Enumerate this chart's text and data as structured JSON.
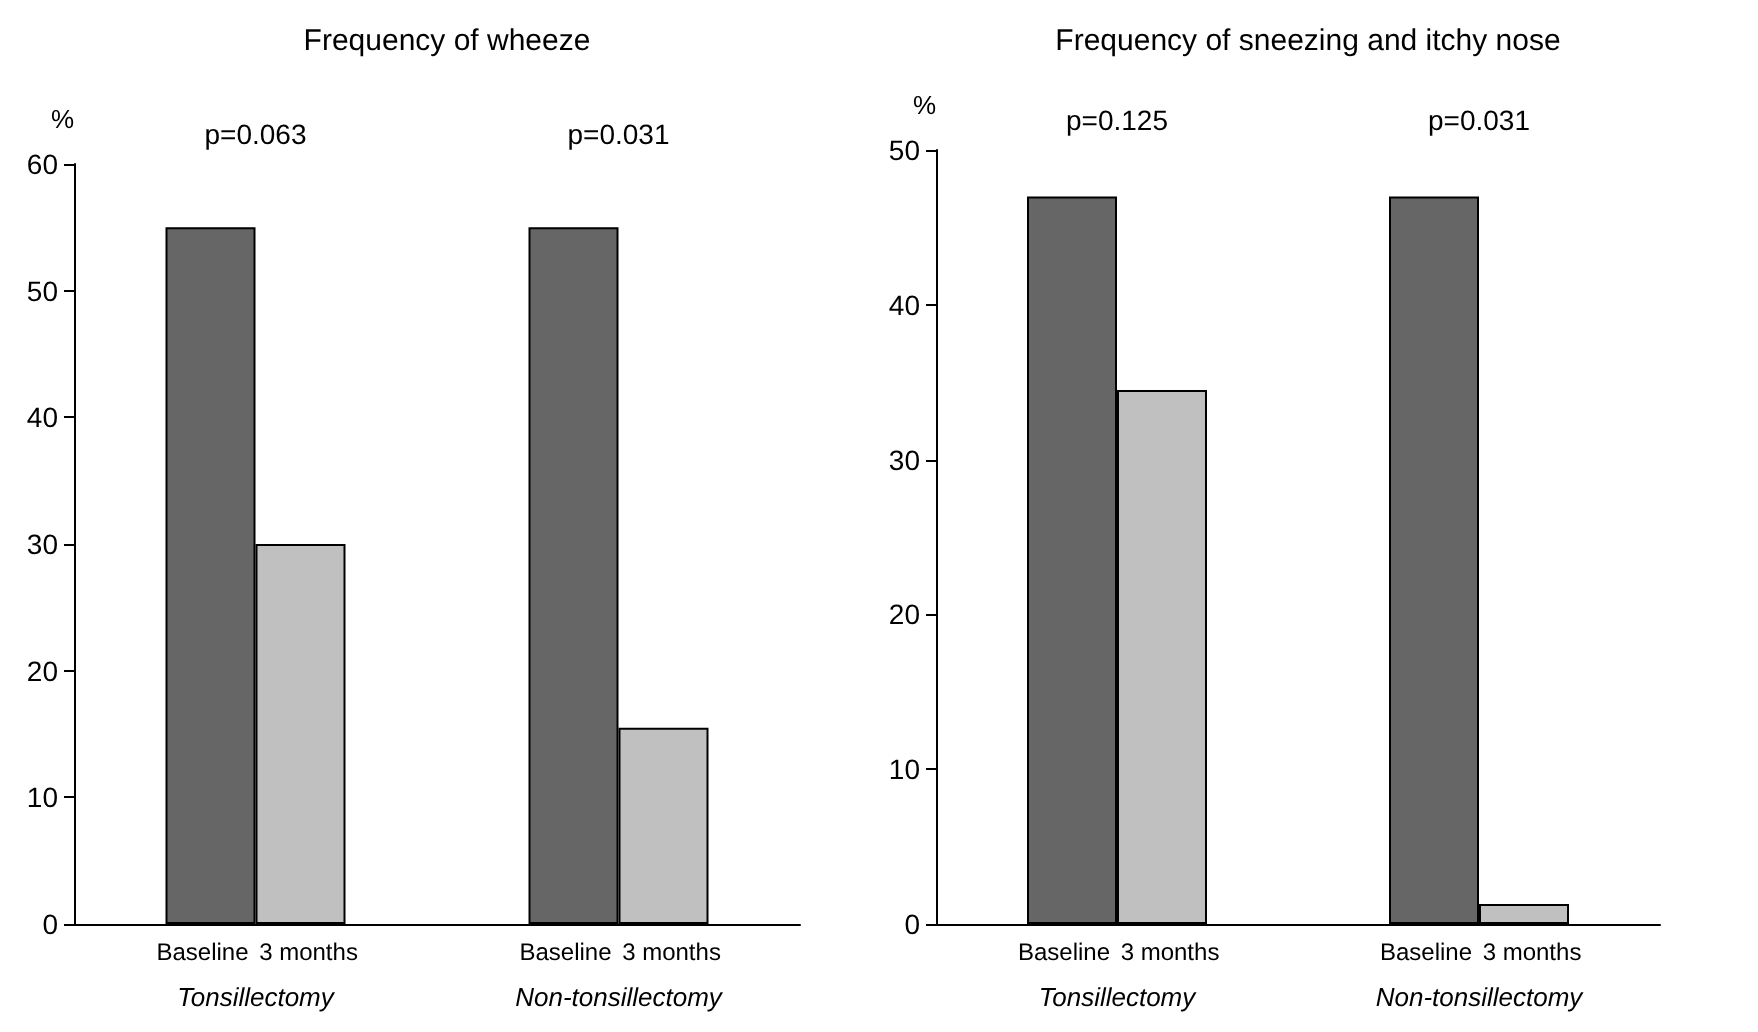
{
  "chart_data": [
    {
      "type": "bar",
      "title": "Frequency of wheeze",
      "ylabel": "%",
      "categories": [
        "Tonsillectomy",
        "Non-tonsillectomy"
      ],
      "series": [
        {
          "name": "Baseline",
          "color": "#666666",
          "values": [
            55,
            55
          ]
        },
        {
          "name": "3 months",
          "color": "#c0c0c0",
          "values": [
            30,
            15.5
          ]
        }
      ],
      "ylim": [
        0,
        60
      ],
      "yticks": [
        0,
        10,
        20,
        30,
        40,
        50,
        60
      ],
      "annotations": [
        "p=0.063",
        "p=0.031"
      ]
    },
    {
      "type": "bar",
      "title": "Frequency of sneezing and itchy nose",
      "ylabel": "%",
      "categories": [
        "Tonsillectomy",
        "Non-tonsillectomy"
      ],
      "series": [
        {
          "name": "Baseline",
          "color": "#666666",
          "values": [
            47,
            47
          ]
        },
        {
          "name": "3 months",
          "color": "#c0c0c0",
          "values": [
            34.5,
            1.3
          ]
        }
      ],
      "ylim": [
        0,
        50
      ],
      "yticks": [
        0,
        10,
        20,
        30,
        40,
        50
      ],
      "annotations": [
        "p=0.125",
        "p=0.031"
      ]
    }
  ]
}
